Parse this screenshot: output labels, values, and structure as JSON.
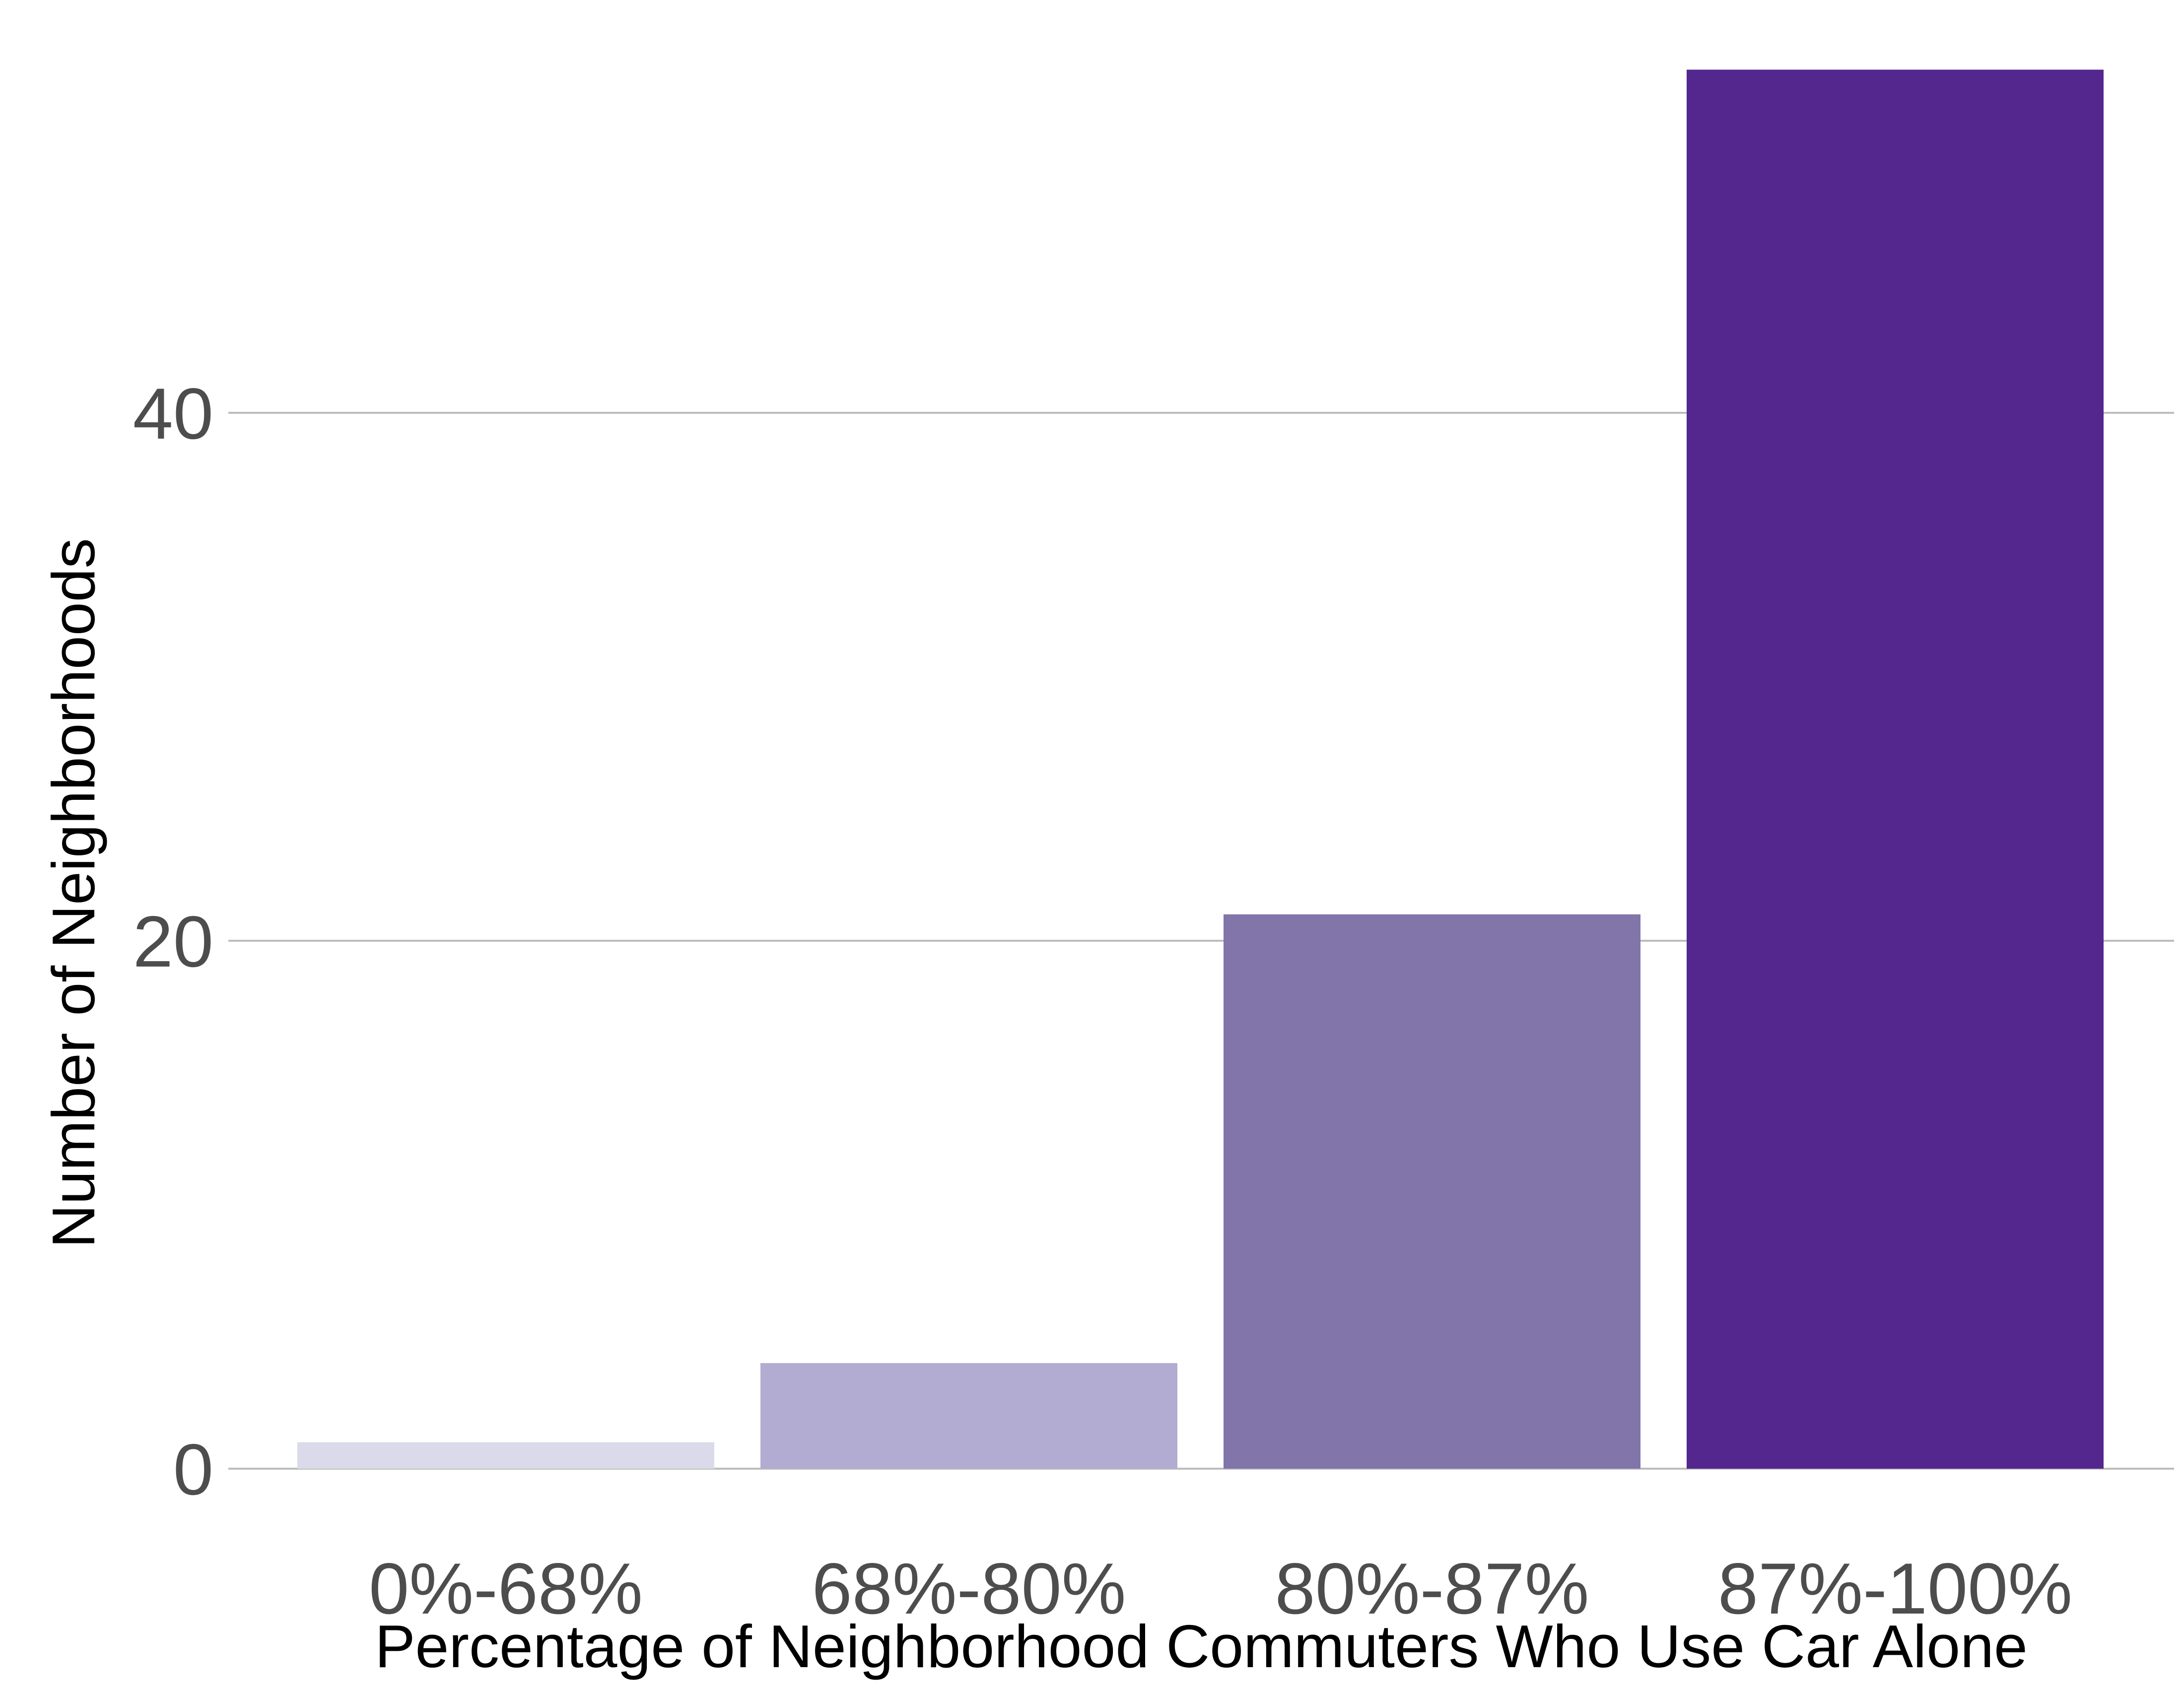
{
  "chart_data": {
    "type": "bar",
    "categories": [
      "0%-68%",
      "68%-80%",
      "80%-87%",
      "87%-100%"
    ],
    "values": [
      1,
      4,
      21,
      53
    ],
    "colors": [
      "#dadaeb",
      "#b2acd2",
      "#8175aa",
      "#54278f"
    ],
    "xlabel": "Percentage of Neighborhood Commuters Who Use Car Alone",
    "ylabel": "Number of Neighborhoods",
    "ylim": [
      0,
      53
    ],
    "yticks": [
      0,
      20,
      40
    ],
    "grid": "horizontal",
    "legend": "none"
  }
}
